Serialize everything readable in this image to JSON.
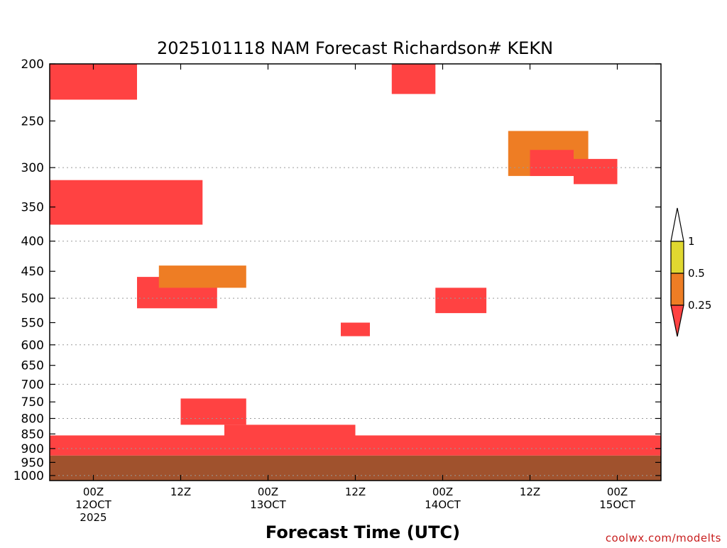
{
  "chart_data": {
    "type": "heatmap",
    "title": "2025101118 NAM Forecast Richardson# KEKN",
    "xlabel": "Forecast Time (UTC)",
    "ylabel": "",
    "y_scale": "log",
    "y_inverted": true,
    "ylim": [
      1020,
      200
    ],
    "y_ticks": [
      200,
      250,
      300,
      350,
      400,
      450,
      500,
      550,
      600,
      650,
      700,
      750,
      800,
      850,
      900,
      950,
      1000
    ],
    "y_gridlines": [
      300,
      400,
      500,
      600,
      700,
      800,
      900,
      1000
    ],
    "x_ticks": [
      {
        "t": "2025-10-12T00Z",
        "label": [
          "00Z",
          "12OCT",
          "2025"
        ]
      },
      {
        "t": "2025-10-12T12Z",
        "label": [
          "12Z"
        ]
      },
      {
        "t": "2025-10-13T00Z",
        "label": [
          "00Z",
          "13OCT"
        ]
      },
      {
        "t": "2025-10-13T12Z",
        "label": [
          "12Z"
        ]
      },
      {
        "t": "2025-10-14T00Z",
        "label": [
          "00Z",
          "14OCT"
        ]
      },
      {
        "t": "2025-10-14T12Z",
        "label": [
          "12Z"
        ]
      },
      {
        "t": "2025-10-15T00Z",
        "label": [
          "00Z",
          "15OCT"
        ]
      }
    ],
    "xlim": [
      "2025-10-11T18Z",
      "2025-10-15T06Z"
    ],
    "legend": {
      "placement": "right",
      "levels": [
        "1",
        "0.5",
        "0.25"
      ],
      "bins": [
        {
          "range": "> 1",
          "color": "#ffffff"
        },
        {
          "range": "0.5 - 1",
          "color": "#e0d830"
        },
        {
          "range": "0.25 - 0.5",
          "color": "#ee7d24"
        },
        {
          "range": "< 0.25",
          "color": "#ff4242"
        }
      ]
    },
    "ground_color": "#a0522d",
    "approx_regions": [
      {
        "t": [
          "2025-10-11T18Z",
          "2025-10-12T06Z"
        ],
        "p": [
          200,
          230
        ],
        "class": "< 0.25"
      },
      {
        "t": [
          "2025-10-11T18Z",
          "2025-10-12T15Z"
        ],
        "p": [
          315,
          375
        ],
        "class": "< 0.25"
      },
      {
        "t": [
          "2025-10-12T06Z",
          "2025-10-12T17Z"
        ],
        "p": [
          460,
          520
        ],
        "class": "< 0.25"
      },
      {
        "t": [
          "2025-10-12T09Z",
          "2025-10-12T21Z"
        ],
        "p": [
          440,
          480
        ],
        "class": "0.25 - 0.5"
      },
      {
        "t": [
          "2025-10-12T12Z",
          "2025-10-12T21Z"
        ],
        "p": [
          740,
          820
        ],
        "class": "< 0.25"
      },
      {
        "t": [
          "2025-10-13T10Z",
          "2025-10-13T14Z"
        ],
        "p": [
          550,
          580
        ],
        "class": "< 0.25"
      },
      {
        "t": [
          "2025-10-13T17Z",
          "2025-10-13T23Z"
        ],
        "p": [
          200,
          225
        ],
        "class": "< 0.25"
      },
      {
        "t": [
          "2025-10-13T23Z",
          "2025-10-14T06Z"
        ],
        "p": [
          480,
          530
        ],
        "class": "< 0.25"
      },
      {
        "t": [
          "2025-10-14T09Z",
          "2025-10-14T20Z"
        ],
        "p": [
          260,
          310
        ],
        "class": "0.25 - 0.5"
      },
      {
        "t": [
          "2025-10-14T12Z",
          "2025-10-14T18Z"
        ],
        "p": [
          280,
          310
        ],
        "class": "< 0.25"
      },
      {
        "t": [
          "2025-10-14T18Z",
          "2025-10-15T00Z"
        ],
        "p": [
          290,
          320
        ],
        "class": "< 0.25"
      },
      {
        "t": [
          "2025-10-11T18Z",
          "2025-10-15T06Z"
        ],
        "p": [
          855,
          925
        ],
        "class": "< 0.25"
      },
      {
        "t": [
          "2025-10-12T18Z",
          "2025-10-13T12Z"
        ],
        "p": [
          820,
          870
        ],
        "class": "< 0.25"
      }
    ]
  },
  "credit": "coolwx.com/modelts"
}
